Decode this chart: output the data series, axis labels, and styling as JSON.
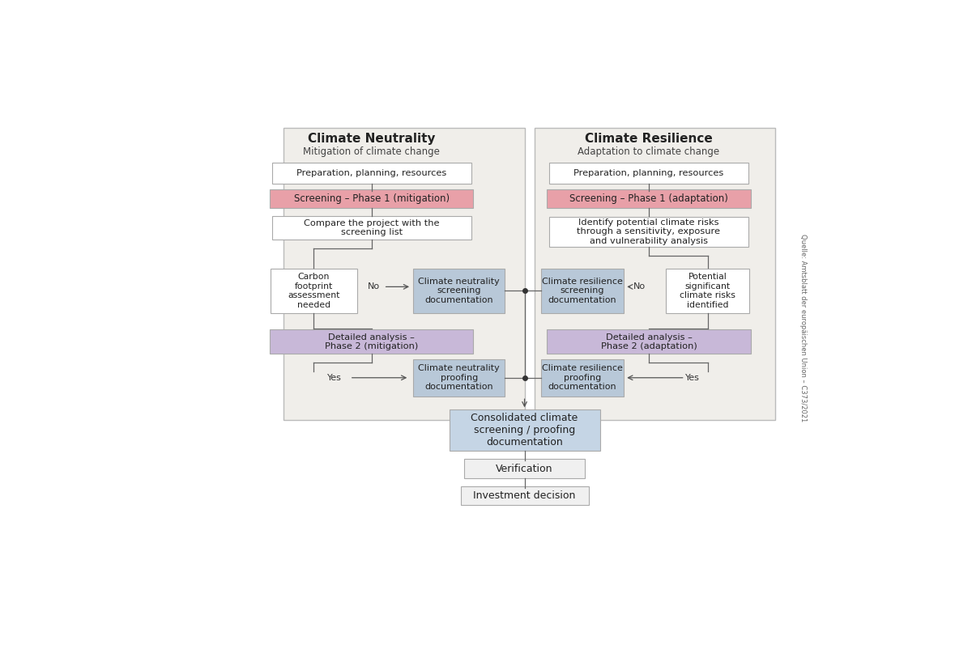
{
  "bg_color": "#ffffff",
  "panel_bg": "#f0eeea",
  "panel_border": "#cccccc",
  "colors": {
    "white_box": "#ffffff",
    "pink_box": "#e8a0a8",
    "blue_box": "#b8c8d8",
    "purple_box": "#c8b8d8",
    "light_blue_box": "#c5d5e5",
    "grey_box": "#f0f0f0"
  },
  "left_title": "Climate Neutrality",
  "left_subtitle": "Mitigation of climate change",
  "right_title": "Climate Resilience",
  "right_subtitle": "Adaptation to climate change",
  "source_text": "Quelle: Amtsblatt der europäischen Union – C373/2021"
}
